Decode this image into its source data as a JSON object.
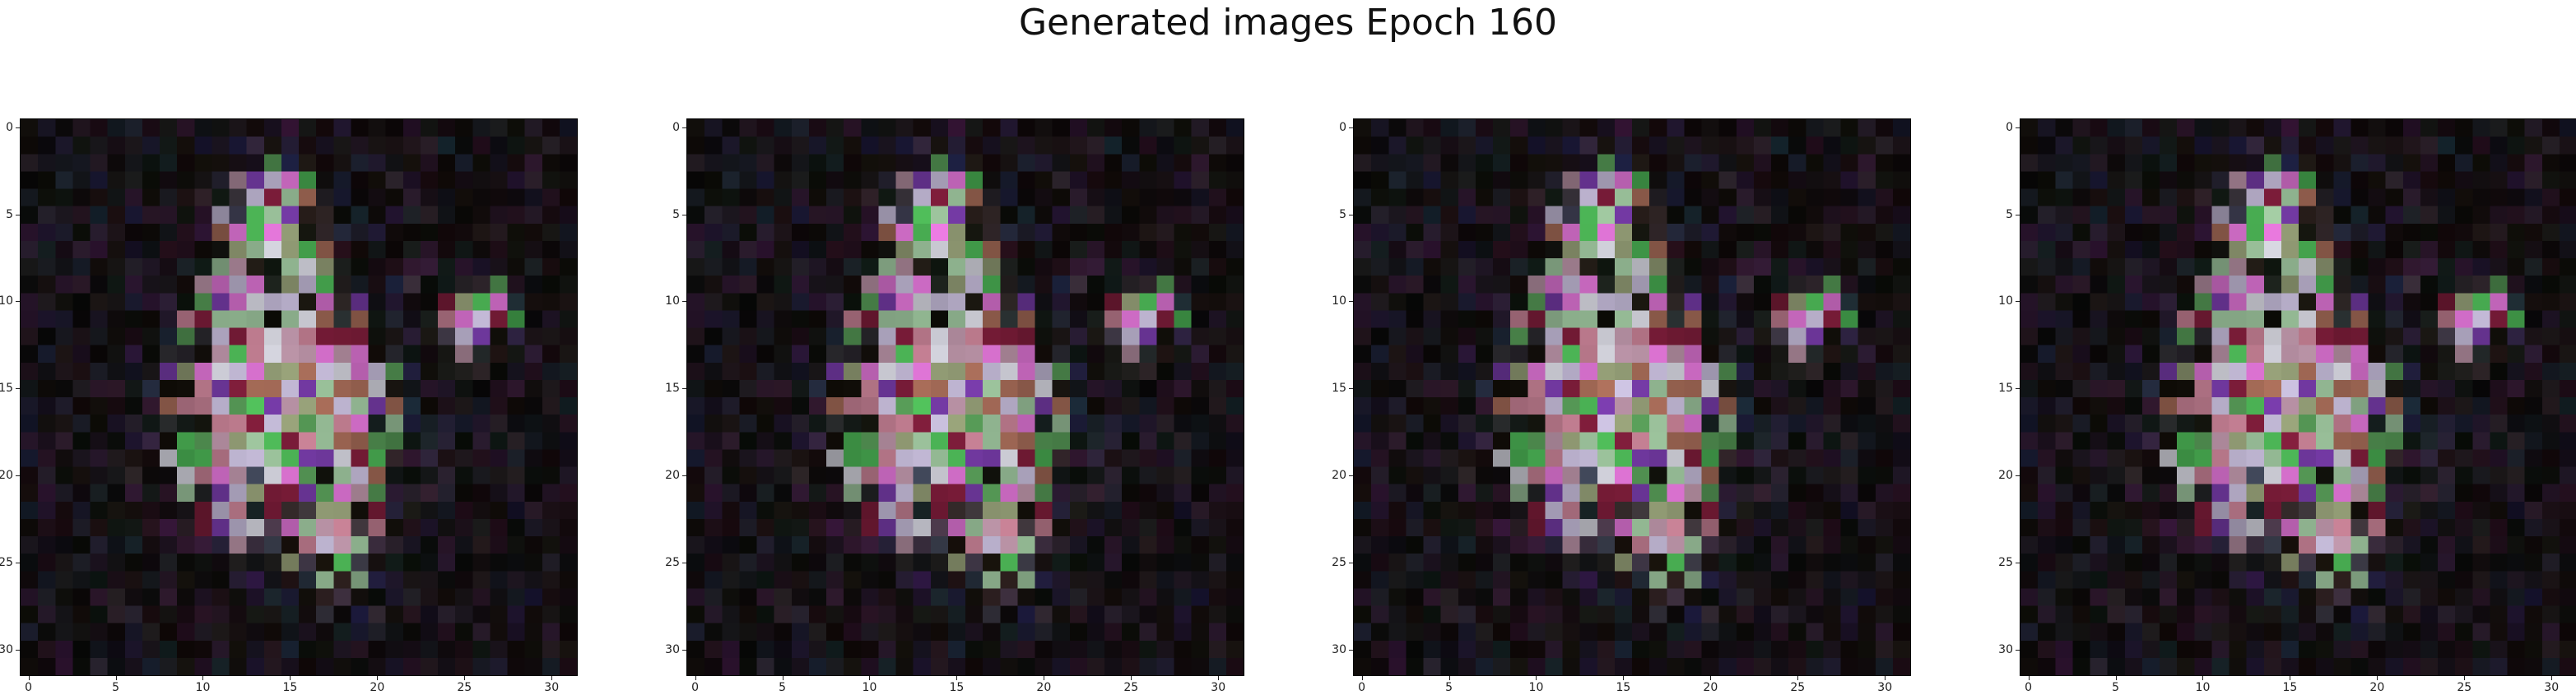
{
  "figure": {
    "title": "Generated images Epoch 160",
    "panel_count": 4,
    "image_size": 32,
    "x_ticks": [
      "0",
      "5",
      "10",
      "15",
      "20",
      "25",
      "30"
    ],
    "y_ticks": [
      "0",
      "5",
      "10",
      "15",
      "20",
      "25",
      "30"
    ],
    "colors": {
      "background": "#000000",
      "frame": "#000000"
    }
  }
}
